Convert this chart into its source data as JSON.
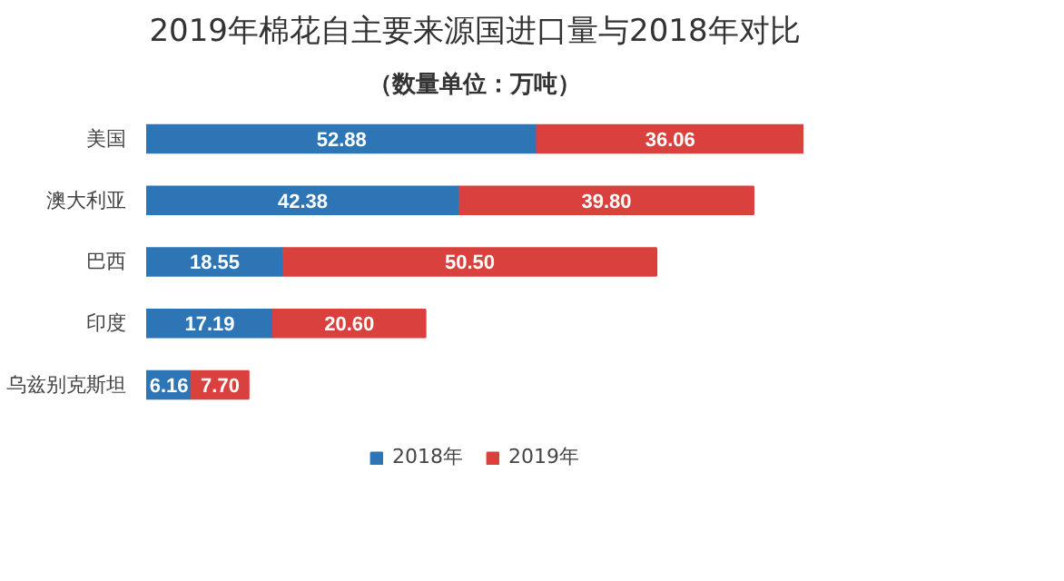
{
  "chart_data": {
    "type": "bar",
    "orientation": "horizontal",
    "stacked": true,
    "title": "2019年棉花自主要来源国进口量与2018年对比",
    "subtitle": "（数量单位：万吨）",
    "categories": [
      "美国",
      "澳大利亚",
      "巴西",
      "印度",
      "乌兹别克斯坦"
    ],
    "series": [
      {
        "name": "2018年",
        "color": "#2e75b6",
        "values": [
          52.88,
          42.38,
          18.55,
          17.19,
          6.16
        ],
        "value_labels": [
          "52.88",
          "42.38",
          "18.55",
          "17.19",
          "6.16"
        ]
      },
      {
        "name": "2019年",
        "color": "#d9413e",
        "values": [
          36.06,
          39.8,
          50.5,
          20.6,
          7.7
        ],
        "value_labels": [
          "36.06",
          "39.80",
          "50.50",
          "20.60",
          "7.70"
        ]
      }
    ],
    "legend": "bottom"
  }
}
